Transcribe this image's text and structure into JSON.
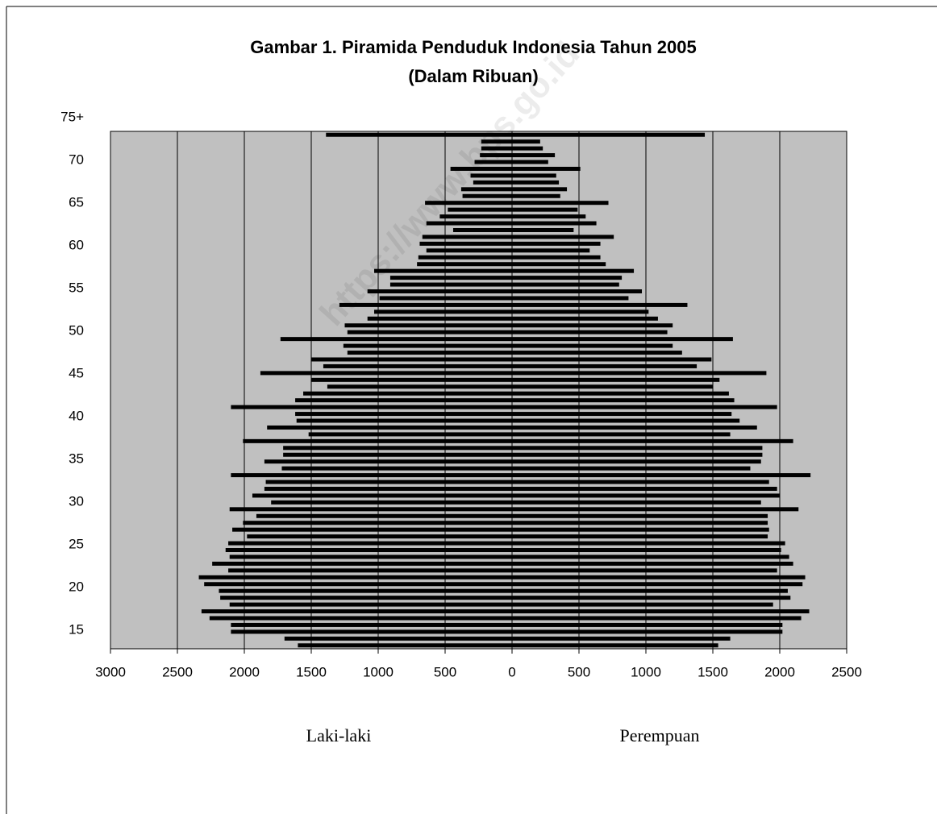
{
  "chart_data": {
    "type": "pyramid",
    "title": "Gambar 1. Piramida Penduduk Indonesia Tahun 2005",
    "subtitle": "(Dalam Ribuan)",
    "watermark": "https://www.bps.go.id",
    "categories": [
      null,
      null,
      null,
      null,
      null,
      null,
      null,
      null,
      null,
      null,
      null,
      null,
      null,
      null,
      null,
      null,
      null,
      null,
      null,
      null,
      null,
      null,
      null,
      null,
      null,
      null,
      null,
      null,
      null,
      null,
      null,
      null,
      null,
      null,
      null,
      null,
      null,
      null,
      null,
      null,
      null,
      null,
      null,
      null,
      null,
      null,
      null,
      null,
      null,
      null,
      null,
      null,
      null,
      null,
      null,
      null,
      null,
      null,
      null,
      null,
      null,
      null,
      null,
      null,
      null,
      null,
      null,
      null,
      null,
      null,
      null,
      null,
      null,
      null,
      null,
      null
    ],
    "series": [
      {
        "name": "Laki-laki",
        "color": "#000000",
        "values": [
          -1600,
          -1700,
          -2100,
          -2100,
          -2260,
          -2320,
          -2110,
          -2180,
          -2190,
          -2300,
          -2340,
          -2120,
          -2240,
          -2110,
          -2140,
          -2120,
          -1980,
          -2090,
          -2010,
          -1910,
          -2110,
          -1800,
          -1940,
          -1850,
          -1840,
          -2100,
          -1720,
          -1850,
          -1710,
          -1710,
          -2010,
          -1520,
          -1830,
          -1610,
          -1620,
          -2100,
          -1620,
          -1560,
          -1380,
          -1500,
          -1880,
          -1410,
          -1500,
          -1230,
          -1260,
          -1730,
          -1230,
          -1250,
          -1080,
          -1030,
          -1290,
          -990,
          -1080,
          -910,
          -910,
          -1030,
          -710,
          -700,
          -640,
          -690,
          -670,
          -440,
          -640,
          -540,
          -480,
          -650,
          -370,
          -380,
          -290,
          -310,
          -460,
          -280,
          -240,
          -230,
          -230,
          -1390
        ]
      },
      {
        "name": "Perempuan",
        "color": "#000000",
        "values": [
          1540,
          1630,
          2020,
          2020,
          2160,
          2220,
          1950,
          2080,
          2060,
          2170,
          2190,
          1980,
          2100,
          2070,
          2010,
          2040,
          1910,
          1920,
          1910,
          1910,
          2140,
          1860,
          2000,
          1980,
          1920,
          2230,
          1780,
          1860,
          1870,
          1870,
          2100,
          1630,
          1830,
          1700,
          1640,
          1980,
          1660,
          1620,
          1500,
          1550,
          1900,
          1380,
          1490,
          1270,
          1200,
          1650,
          1160,
          1200,
          1090,
          1020,
          1310,
          870,
          970,
          800,
          820,
          910,
          700,
          660,
          580,
          660,
          760,
          460,
          630,
          550,
          490,
          720,
          360,
          410,
          350,
          330,
          510,
          270,
          320,
          230,
          210,
          1440
        ]
      }
    ],
    "xlim": [
      -3000,
      2500
    ],
    "xticks": [
      {
        "value": -3000,
        "label": "3000"
      },
      {
        "value": -2500,
        "label": "2500"
      },
      {
        "value": -2000,
        "label": "2000"
      },
      {
        "value": -1500,
        "label": "1500"
      },
      {
        "value": -1000,
        "label": "1000"
      },
      {
        "value": -500,
        "label": "500"
      },
      0,
      500,
      1000,
      1500,
      2000,
      2500
    ],
    "ylim": [
      12.83,
      73.4
    ],
    "yticks": [
      15,
      20,
      25,
      30,
      35,
      40,
      45,
      50,
      55,
      60,
      65,
      70,
      {
        "value": 75,
        "label": "75+"
      }
    ],
    "grid": true,
    "plot_background": "#c0c0c0"
  }
}
